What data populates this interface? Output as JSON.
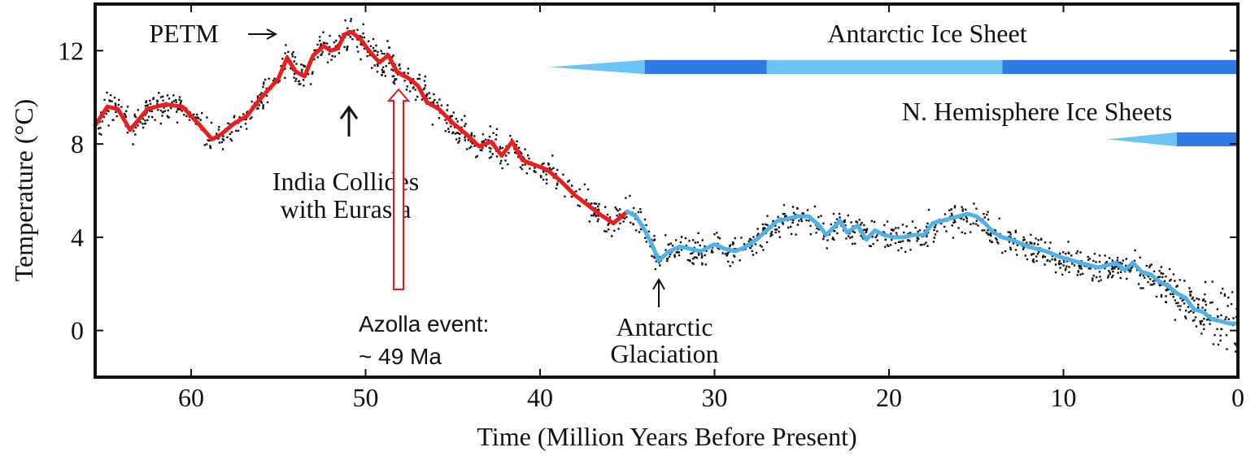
{
  "chart_data": {
    "type": "line",
    "xlabel": "Time (Million Years Before Present)",
    "ylabel": "Temperature (°C)",
    "xlim": [
      65.5,
      0
    ],
    "ylim": [
      -2,
      14
    ],
    "xticks": [
      60,
      50,
      40,
      30,
      20,
      10,
      0
    ],
    "yticks": [
      12,
      8,
      4,
      0
    ],
    "grid": false,
    "colors": {
      "warm": "#ee1c1c",
      "cool": "#4fb3ea",
      "ice_light": "#6cc4f4",
      "ice_dark": "#2f7be6",
      "azolla_arrow": "#e8151b",
      "points": "#111111"
    },
    "series": [
      {
        "color": "#ee1c1c",
        "x": [
          65.5,
          64.8,
          64.2,
          63.5,
          62.5,
          61.5,
          60.5,
          59.5,
          58.8,
          58.3,
          57.5,
          56.8,
          56.2,
          55.6,
          55.0,
          54.5,
          54.0,
          53.5,
          53.0,
          52.4,
          52.0,
          51.6,
          51.2,
          50.8,
          50.3,
          49.7,
          49.2,
          48.7,
          48.2,
          47.5,
          47.0,
          46.5,
          45.8,
          45.0,
          44.2,
          43.5,
          42.8,
          42.2,
          41.6,
          41.0,
          40.3,
          39.6,
          38.8,
          38.0,
          37.3,
          36.6,
          35.8,
          35.0
        ],
        "y": [
          8.8,
          9.6,
          9.5,
          8.6,
          9.5,
          9.7,
          9.6,
          8.8,
          8.2,
          8.4,
          8.9,
          9.2,
          9.8,
          10.3,
          10.8,
          11.7,
          11.1,
          10.9,
          11.8,
          12.2,
          12.0,
          12.1,
          12.7,
          12.8,
          12.5,
          11.9,
          11.5,
          11.8,
          11.1,
          10.8,
          10.5,
          9.8,
          9.5,
          8.9,
          8.4,
          7.9,
          8.1,
          7.5,
          8.1,
          7.3,
          7.1,
          6.9,
          6.4,
          5.8,
          5.4,
          5.0,
          4.6,
          5.1
        ]
      },
      {
        "color": "#4fb3ea",
        "x": [
          35.0,
          34.5,
          34.0,
          33.6,
          33.2,
          32.6,
          32.0,
          31.4,
          30.8,
          30.0,
          29.4,
          28.8,
          28.2,
          27.6,
          27.0,
          26.4,
          25.8,
          25.2,
          24.6,
          24.0,
          23.6,
          23.2,
          22.8,
          22.4,
          21.8,
          21.3,
          20.8,
          20.3,
          19.7,
          19.2,
          18.6,
          18.0,
          17.5,
          17.0,
          16.5,
          16.0,
          15.5,
          15.0,
          14.5,
          14.0,
          13.5,
          13.0,
          12.0,
          11.0,
          10.0,
          9.0,
          8.0,
          7.0,
          6.5,
          6.0,
          5.5,
          5.0,
          4.5,
          4.0,
          3.5,
          3.0,
          2.5,
          2.0,
          1.5,
          1.0,
          0.5,
          0.0
        ],
        "y": [
          5.1,
          4.9,
          4.3,
          3.7,
          3.0,
          3.4,
          3.6,
          3.5,
          3.4,
          3.7,
          3.5,
          3.4,
          3.6,
          3.9,
          4.3,
          4.7,
          4.8,
          4.9,
          4.9,
          4.5,
          4.1,
          4.4,
          4.7,
          4.2,
          4.5,
          3.9,
          4.3,
          4.1,
          4.0,
          4.0,
          4.1,
          4.1,
          4.6,
          4.7,
          4.8,
          4.9,
          5.0,
          4.9,
          4.6,
          4.2,
          4.0,
          3.9,
          3.6,
          3.4,
          3.1,
          2.9,
          2.7,
          2.9,
          2.6,
          2.9,
          2.5,
          2.4,
          2.1,
          1.9,
          1.6,
          1.4,
          0.9,
          0.8,
          0.5,
          0.4,
          0.3,
          0.3
        ]
      }
    ],
    "ice_bars": [
      {
        "label": "Antarctic Ice Sheet",
        "y_top": 11.6,
        "y_bottom": 11.0,
        "taper": [
          39.5,
          34.0
        ],
        "segments": [
          {
            "from": 34.0,
            "to": 27.0,
            "shade": "dark"
          },
          {
            "from": 27.0,
            "to": 13.5,
            "shade": "light"
          },
          {
            "from": 13.5,
            "to": 0.0,
            "shade": "dark"
          }
        ]
      },
      {
        "label": "N. Hemisphere Ice Sheets",
        "y_top": 8.5,
        "y_bottom": 7.9,
        "taper": [
          7.5,
          3.5
        ],
        "segments": [
          {
            "from": 3.5,
            "to": 0.0,
            "shade": "dark"
          }
        ]
      }
    ],
    "annotations": [
      {
        "text": "PETM",
        "x": 55.0
      },
      {
        "text_lines": [
          "India Collides",
          "with Eurasia"
        ],
        "x": 51.0
      },
      {
        "text_lines": [
          "Antarctic",
          "Glaciation"
        ],
        "x": 33.5
      },
      {
        "text_lines": [
          "Azolla event:",
          "~ 49 Ma"
        ],
        "x": 48.0
      }
    ]
  }
}
